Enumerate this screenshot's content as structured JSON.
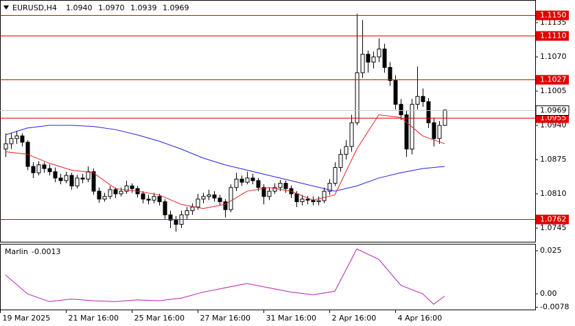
{
  "chart_data": [
    {
      "type": "candlestick",
      "title": "EURUSD,H4",
      "title_ohlc": [
        "1.0940",
        "1.0970",
        "1.0939",
        "1.0969"
      ],
      "candles": [
        [
          1.0895,
          1.0925,
          1.088,
          1.0905
        ],
        [
          1.0905,
          1.0925,
          1.0895,
          1.0915
        ],
        [
          1.0915,
          1.093,
          1.0905,
          1.092
        ],
        [
          1.092,
          1.0925,
          1.09,
          1.0908
        ],
        [
          1.0908,
          1.0912,
          1.0855,
          1.0862
        ],
        [
          1.0862,
          1.087,
          1.084,
          1.085
        ],
        [
          1.085,
          1.0872,
          1.0845,
          1.0865
        ],
        [
          1.0865,
          1.087,
          1.085,
          1.0858
        ],
        [
          1.0858,
          1.0866,
          1.0845,
          1.0852
        ],
        [
          1.0852,
          1.086,
          1.0832,
          1.084
        ],
        [
          1.084,
          1.0848,
          1.0828,
          1.0835
        ],
        [
          1.0835,
          1.0852,
          1.083,
          1.0845
        ],
        [
          1.0845,
          1.085,
          1.0818,
          1.0825
        ],
        [
          1.0825,
          1.0846,
          1.082,
          1.084
        ],
        [
          1.084,
          1.0848,
          1.083,
          1.0838
        ],
        [
          1.0838,
          1.0862,
          1.0832,
          1.0852
        ],
        [
          1.0852,
          1.0858,
          1.0808,
          1.0815
        ],
        [
          1.0815,
          1.0822,
          1.0793,
          1.08
        ],
        [
          1.08,
          1.0812,
          1.0795,
          1.0805
        ],
        [
          1.0805,
          1.0825,
          1.08,
          1.0818
        ],
        [
          1.0818,
          1.0822,
          1.0802,
          1.081
        ],
        [
          1.081,
          1.0822,
          1.0805,
          1.0815
        ],
        [
          1.0815,
          1.0835,
          1.081,
          1.0825
        ],
        [
          1.0825,
          1.083,
          1.0812,
          1.082
        ],
        [
          1.082,
          1.0825,
          1.0803,
          1.081
        ],
        [
          1.081,
          1.0815,
          1.0792,
          1.08
        ],
        [
          1.08,
          1.0808,
          1.079,
          1.0798
        ],
        [
          1.0798,
          1.0812,
          1.0792,
          1.0805
        ],
        [
          1.0805,
          1.081,
          1.0788,
          1.0795
        ],
        [
          1.0795,
          1.08,
          1.0762,
          1.077
        ],
        [
          1.077,
          1.0778,
          1.0745,
          1.076
        ],
        [
          1.076,
          1.0768,
          1.0738,
          1.0752
        ],
        [
          1.0752,
          1.0778,
          1.0745,
          1.077
        ],
        [
          1.077,
          1.0785,
          1.0762,
          1.0778
        ],
        [
          1.0778,
          1.0792,
          1.077,
          1.0785
        ],
        [
          1.0785,
          1.081,
          1.078,
          1.08
        ],
        [
          1.08,
          1.0812,
          1.0792,
          1.0805
        ],
        [
          1.0805,
          1.0818,
          1.0798,
          1.0808
        ],
        [
          1.0808,
          1.0815,
          1.0795,
          1.0802
        ],
        [
          1.0802,
          1.0808,
          1.0788,
          1.0795
        ],
        [
          1.0795,
          1.08,
          1.0765,
          1.078
        ],
        [
          1.078,
          1.0828,
          1.0775,
          1.0822
        ],
        [
          1.0822,
          1.085,
          1.0815,
          1.0838
        ],
        [
          1.0838,
          1.0845,
          1.0825,
          1.0832
        ],
        [
          1.0832,
          1.0852,
          1.0828,
          1.084
        ],
        [
          1.084,
          1.0848,
          1.0828,
          1.0835
        ],
        [
          1.0835,
          1.084,
          1.0815,
          1.0822
        ],
        [
          1.0822,
          1.0828,
          1.079,
          1.0805
        ],
        [
          1.0805,
          1.0822,
          1.0798,
          1.0815
        ],
        [
          1.0815,
          1.083,
          1.081,
          1.0822
        ],
        [
          1.0822,
          1.0836,
          1.0815,
          1.083
        ],
        [
          1.083,
          1.0835,
          1.0812,
          1.082
        ],
        [
          1.082,
          1.0826,
          1.0802,
          1.081
        ],
        [
          1.081,
          1.0815,
          1.0785,
          1.0795
        ],
        [
          1.0795,
          1.0808,
          1.0788,
          1.08
        ],
        [
          1.08,
          1.0806,
          1.079,
          1.0798
        ],
        [
          1.0798,
          1.0805,
          1.0788,
          1.0795
        ],
        [
          1.0795,
          1.0805,
          1.0788,
          1.0797
        ],
        [
          1.0797,
          1.0822,
          1.0792,
          1.0815
        ],
        [
          1.0815,
          1.0838,
          1.0808,
          1.083
        ],
        [
          1.083,
          1.087,
          1.0825,
          1.086
        ],
        [
          1.086,
          1.0895,
          1.0852,
          1.0885
        ],
        [
          1.0885,
          1.0912,
          1.0875,
          1.09
        ],
        [
          1.09,
          1.096,
          1.089,
          1.0945
        ],
        [
          1.0945,
          1.1152,
          1.094,
          1.104
        ],
        [
          1.104,
          1.114,
          1.103,
          1.1075
        ],
        [
          1.1075,
          1.1082,
          1.104,
          1.106
        ],
        [
          1.106,
          1.108,
          1.1048,
          1.107
        ],
        [
          1.107,
          1.1105,
          1.106,
          1.1085
        ],
        [
          1.1085,
          1.1095,
          1.104,
          1.105
        ],
        [
          1.105,
          1.106,
          1.1015,
          1.1025
        ],
        [
          1.1025,
          1.1035,
          1.097,
          1.098
        ],
        [
          1.098,
          1.099,
          1.095,
          1.096
        ],
        [
          1.096,
          1.0968,
          1.088,
          1.0895
        ],
        [
          1.0895,
          1.099,
          1.0885,
          1.098
        ],
        [
          1.098,
          1.1052,
          1.097,
          1.0995
        ],
        [
          1.0995,
          1.101,
          1.0975,
          1.0985
        ],
        [
          1.0985,
          1.0992,
          1.0935,
          1.0945
        ],
        [
          1.0945,
          1.0955,
          1.09,
          1.0915
        ],
        [
          1.0915,
          1.0948,
          1.0905,
          1.094
        ],
        [
          1.094,
          1.097,
          1.0939,
          1.0969
        ]
      ],
      "up_color": "#ffffff",
      "down_color": "#000000",
      "outline_color": "#000000",
      "lines": [
        {
          "color": "#2020e0",
          "x": [
            0,
            4,
            8,
            12,
            16,
            20,
            24,
            28,
            32,
            36,
            40,
            44,
            48,
            52,
            56,
            60,
            64,
            68,
            72,
            76,
            80
          ],
          "values": [
            1.0922,
            1.0935,
            1.094,
            1.094,
            1.0938,
            1.0932,
            1.0922,
            1.091,
            1.0895,
            1.0878,
            1.0865,
            1.0855,
            1.0845,
            1.0835,
            1.0825,
            1.0815,
            1.0825,
            1.084,
            1.085,
            1.0858,
            1.0862
          ]
        },
        {
          "color": "#e02020",
          "x": [
            0,
            4,
            8,
            12,
            16,
            20,
            24,
            28,
            32,
            36,
            40,
            44,
            48,
            52,
            56,
            60,
            64,
            68,
            72,
            76,
            80
          ],
          "values": [
            1.089,
            1.0885,
            1.0868,
            1.0855,
            1.085,
            1.082,
            1.0815,
            1.0808,
            1.079,
            1.0782,
            1.079,
            1.0815,
            1.0822,
            1.0815,
            1.0798,
            1.0808,
            1.0895,
            1.096,
            1.0955,
            1.092,
            1.0905
          ]
        }
      ],
      "levels": [
        {
          "value": 1.115,
          "label": "1.1150"
        },
        {
          "value": 1.111,
          "label": "1.1110"
        },
        1.1027,
        1.0955,
        1.0762
      ],
      "level_color": "#e00000",
      "ylim": [
        1.0719,
        1.1178
      ],
      "yticks": [
        1.1135,
        {
          "value": 1.107,
          "label": "1.1070"
        },
        1.1005,
        {
          "value": 1.094,
          "label": "1.0940"
        },
        1.0875,
        {
          "value": 1.081,
          "label": "1.0810"
        },
        1.0745
      ],
      "xlim": [
        -1,
        96.5
      ],
      "xticks": [
        {
          "value": -1,
          "label": "19 Mar 2025"
        },
        {
          "value": 11,
          "label": "21 Mar 16:00"
        },
        {
          "value": 23,
          "label": "25 Mar 16:00"
        },
        {
          "value": 35,
          "label": "27 Mar 16:00"
        },
        {
          "value": 47,
          "label": "31 Mar 16:00"
        },
        {
          "value": 59,
          "label": "2 Apr 16:00"
        },
        {
          "value": 71,
          "label": "4 Apr 16:00"
        }
      ]
    },
    {
      "type": "line",
      "name": "Marlin",
      "color": "#b020b0",
      "x": [
        0,
        4,
        8,
        12,
        16,
        20,
        24,
        28,
        32,
        36,
        40,
        44,
        48,
        52,
        56,
        60,
        64,
        68,
        72,
        76,
        78,
        80
      ],
      "values": [
        0.011,
        0,
        -0.0045,
        -0.003,
        -0.004,
        -0.0045,
        -0.0035,
        -0.004,
        -0.0025,
        0.001,
        0.0035,
        0.006,
        0.0035,
        0.001,
        -0.0005,
        0.0015,
        0.026,
        0.02,
        0.005,
        0,
        -0.006,
        -0.0013
      ],
      "ylim": [
        -0.0091,
        0.029
      ],
      "yticks": [
        0.025,
        {
          "value": 0,
          "label": "0.00"
        },
        -0.0078
      ],
      "xlim": [
        -1,
        96.5
      ]
    }
  ]
}
